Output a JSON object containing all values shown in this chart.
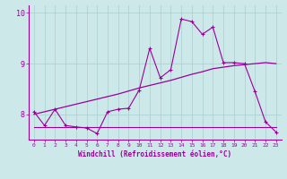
{
  "x": [
    0,
    1,
    2,
    3,
    4,
    5,
    6,
    7,
    8,
    9,
    10,
    11,
    12,
    13,
    14,
    15,
    16,
    17,
    18,
    19,
    20,
    21,
    22,
    23
  ],
  "y_main": [
    8.05,
    7.78,
    8.1,
    7.78,
    7.75,
    7.73,
    7.62,
    8.05,
    8.1,
    8.12,
    8.48,
    9.3,
    8.72,
    8.88,
    9.88,
    9.83,
    9.58,
    9.72,
    9.02,
    9.02,
    9.0,
    8.45,
    7.85,
    7.65
  ],
  "y_upper": [
    8.0,
    8.05,
    8.1,
    8.15,
    8.2,
    8.25,
    8.3,
    8.35,
    8.4,
    8.46,
    8.52,
    8.57,
    8.62,
    8.67,
    8.73,
    8.79,
    8.84,
    8.9,
    8.93,
    8.96,
    8.98,
    9.0,
    9.02,
    9.0
  ],
  "y_lower": [
    7.75,
    7.75,
    7.75,
    7.75,
    7.75,
    7.75,
    7.75,
    7.75,
    7.75,
    7.75,
    7.75,
    7.75,
    7.75,
    7.75,
    7.75,
    7.75,
    7.75,
    7.75,
    7.75,
    7.75,
    7.75,
    7.75,
    7.75,
    7.75
  ],
  "line_color": "#990099",
  "bg_color": "#cce8e8",
  "grid_color": "#aacece",
  "xlabel": "Windchill (Refroidissement éolien,°C)",
  "ylim": [
    7.5,
    10.15
  ],
  "xlim": [
    -0.5,
    23.5
  ],
  "yticks": [
    8,
    9,
    10
  ],
  "xticks": [
    0,
    1,
    2,
    3,
    4,
    5,
    6,
    7,
    8,
    9,
    10,
    11,
    12,
    13,
    14,
    15,
    16,
    17,
    18,
    19,
    20,
    21,
    22,
    23
  ]
}
